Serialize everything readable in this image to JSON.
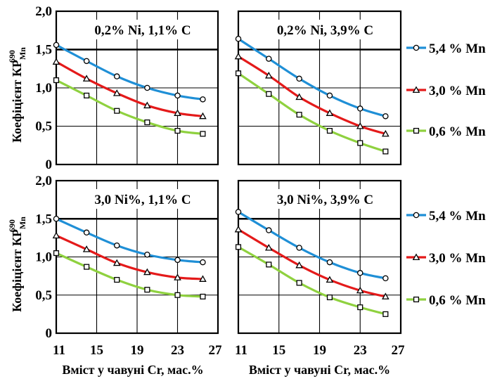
{
  "ylabel": {
    "main": "Коефіцієнт  КР",
    "sup": "690",
    "sub": "Mn"
  },
  "xlabel": "Вміст у чавуні Cr, мас.%",
  "chart_data": [
    {
      "type": "line",
      "title": "0,2% Ni, 1,1% C",
      "x": [
        11,
        14,
        17,
        20,
        23,
        25.5
      ],
      "ylim": [
        0,
        2.0
      ],
      "xlim": [
        11,
        27
      ],
      "series": [
        {
          "name": "5,4 % Mn",
          "values": [
            1.56,
            1.35,
            1.15,
            1.0,
            0.9,
            0.85
          ]
        },
        {
          "name": "3,0 % Mn",
          "values": [
            1.34,
            1.12,
            0.93,
            0.77,
            0.67,
            0.63
          ]
        },
        {
          "name": "0,6 % Mn",
          "values": [
            1.1,
            0.9,
            0.7,
            0.55,
            0.44,
            0.4
          ]
        }
      ]
    },
    {
      "type": "line",
      "title": "0,2% Ni,  3,9% C",
      "x": [
        11,
        14,
        17,
        20,
        23,
        25.5
      ],
      "ylim": [
        0,
        2.0
      ],
      "xlim": [
        11,
        27
      ],
      "series": [
        {
          "name": "5,4 % Mn",
          "values": [
            1.64,
            1.38,
            1.12,
            0.9,
            0.73,
            0.63
          ]
        },
        {
          "name": "3,0 % Mn",
          "values": [
            1.41,
            1.16,
            0.88,
            0.67,
            0.5,
            0.4
          ]
        },
        {
          "name": "0,6 % Mn",
          "values": [
            1.19,
            0.92,
            0.65,
            0.44,
            0.28,
            0.17
          ]
        }
      ]
    },
    {
      "type": "line",
      "title": "3,0 Ni%, 1,1% C",
      "x": [
        11,
        14,
        17,
        20,
        23,
        25.5
      ],
      "ylim": [
        0,
        2.0
      ],
      "xlim": [
        11,
        27
      ],
      "series": [
        {
          "name": "5,4 % Mn",
          "values": [
            1.5,
            1.32,
            1.15,
            1.03,
            0.96,
            0.93
          ]
        },
        {
          "name": "3,0 % Mn",
          "values": [
            1.28,
            1.1,
            0.92,
            0.8,
            0.73,
            0.71
          ]
        },
        {
          "name": "0,6 % Mn",
          "values": [
            1.05,
            0.87,
            0.7,
            0.57,
            0.5,
            0.48
          ]
        }
      ]
    },
    {
      "type": "line",
      "title": "3,0 Ni%,  3,9% C",
      "x": [
        11,
        14,
        17,
        20,
        23,
        25.5
      ],
      "ylim": [
        0,
        2.0
      ],
      "xlim": [
        11,
        27
      ],
      "series": [
        {
          "name": "5,4 % Mn",
          "values": [
            1.59,
            1.35,
            1.12,
            0.93,
            0.79,
            0.72
          ]
        },
        {
          "name": "3,0 % Mn",
          "values": [
            1.36,
            1.12,
            0.89,
            0.7,
            0.56,
            0.48
          ]
        },
        {
          "name": "0,6 % Mn",
          "values": [
            1.13,
            0.9,
            0.66,
            0.47,
            0.34,
            0.25
          ]
        }
      ]
    }
  ],
  "x_ticks": [
    "11",
    "15",
    "19",
    "23",
    "27"
  ],
  "y_ticks": [
    "0",
    "0,5",
    "1,0",
    "1,5",
    "2,0"
  ],
  "legend": [
    {
      "label": "5,4 % Mn",
      "color": "#1f8fd6",
      "marker": "circle"
    },
    {
      "label": "3,0 % Mn",
      "color": "#e41a1a",
      "marker": "triangle"
    },
    {
      "label": "0,6 % Mn",
      "color": "#8fd13f",
      "marker": "square"
    }
  ]
}
